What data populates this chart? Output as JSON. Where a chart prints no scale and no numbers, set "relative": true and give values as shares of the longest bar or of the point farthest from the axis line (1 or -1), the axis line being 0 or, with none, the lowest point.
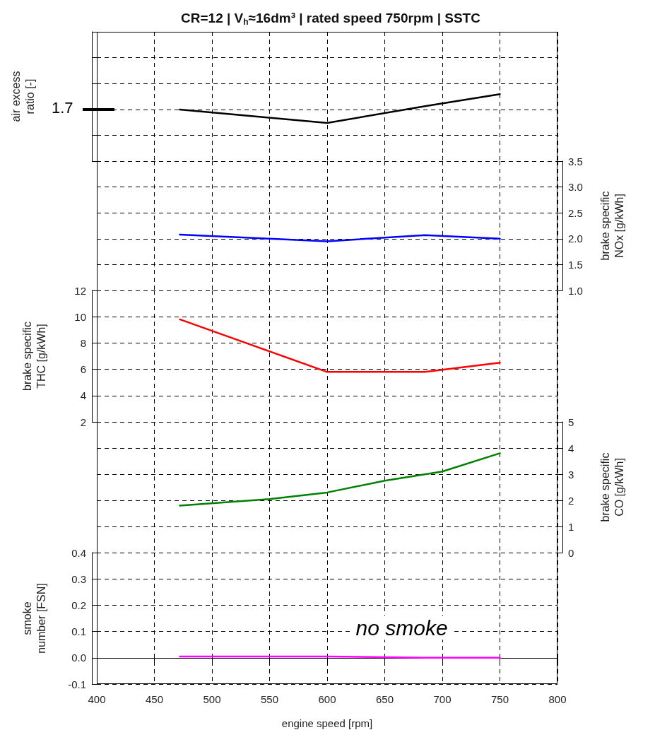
{
  "chart_data": [
    {
      "type": "line",
      "title": "CR=12 | V$_{h}$≈16dm³ | rated speed 750rpm | SSTC",
      "ylabel": "air excess ratio [-]",
      "relative": true,
      "x": [
        472,
        600,
        685,
        750
      ],
      "series": [
        {
          "color": "#000000",
          "values": [
            0.77,
            0.57,
            0.82,
            1
          ]
        }
      ],
      "annotations": [
        "1.7"
      ],
      "xlim": [
        400,
        800
      ],
      "xticks": [
        400,
        450,
        500,
        550,
        600,
        650,
        700,
        750,
        800
      ],
      "tick_labels": "y",
      "grid": true,
      "marker": "none"
    },
    {
      "type": "line",
      "ylabel": "brake specific NOx [g/kWh]",
      "x": [
        472,
        600,
        685,
        750
      ],
      "series": [
        {
          "color": "#0000ff",
          "values": [
            2.08,
            1.95,
            2.07,
            2.0
          ]
        }
      ],
      "xlim": [
        400,
        800
      ],
      "xticks": [
        400,
        450,
        500,
        550,
        600,
        650,
        700,
        750,
        800
      ],
      "ylim": [
        1.0,
        3.5
      ],
      "yticks": [
        {
          "value": 1,
          "label": "1.0"
        },
        1.5,
        {
          "value": 2,
          "label": "2.0"
        },
        2.5,
        {
          "value": 3,
          "label": "3.0"
        },
        3.5
      ],
      "tick_labels": "y",
      "grid": true,
      "marker": "none"
    },
    {
      "type": "line",
      "ylabel": "brake specific THC [g/kWh]",
      "x": [
        472,
        600,
        685,
        750
      ],
      "series": [
        {
          "color": "#ff0000",
          "values": [
            9.8,
            5.8,
            5.8,
            6.5
          ]
        }
      ],
      "xlim": [
        400,
        800
      ],
      "xticks": [
        400,
        450,
        500,
        550,
        600,
        650,
        700,
        750,
        800
      ],
      "ylim": [
        2,
        12
      ],
      "yticks": [
        2,
        4,
        6,
        8,
        10,
        12
      ],
      "tick_labels": "y",
      "grid": true,
      "marker": "none"
    },
    {
      "type": "line",
      "ylabel": "brake specific CO [g/kWh]",
      "x": [
        472,
        550,
        600,
        650,
        700,
        750
      ],
      "series": [
        {
          "color": "#008000",
          "values": [
            1.8,
            2.05,
            2.3,
            2.75,
            3.1,
            3.8
          ]
        }
      ],
      "xlim": [
        400,
        800
      ],
      "xticks": [
        400,
        450,
        500,
        550,
        600,
        650,
        700,
        750,
        800
      ],
      "ylim": [
        0,
        5
      ],
      "yticks": [
        0,
        1,
        2,
        3,
        4,
        5
      ],
      "tick_labels": "y",
      "grid": true,
      "marker": "none"
    },
    {
      "type": "line",
      "xlabel": "engine speed [rpm]",
      "ylabel": "smoke number [FSN]",
      "x": [
        472,
        600,
        685,
        750
      ],
      "series": [
        {
          "color": "#ff00ff",
          "values": [
            0.005,
            0.005,
            0.0,
            0.0
          ]
        }
      ],
      "annotations": [
        "no smoke"
      ],
      "xlim": [
        400,
        800
      ],
      "xticks": [
        400,
        450,
        500,
        550,
        600,
        650,
        700,
        750,
        800
      ],
      "ylim": [
        -0.1,
        0.4
      ],
      "yticks": [
        -0.1,
        {
          "value": 0,
          "label": "0.0"
        },
        0.1,
        0.2,
        0.3,
        0.4
      ],
      "grid": true,
      "marker": "none"
    }
  ]
}
